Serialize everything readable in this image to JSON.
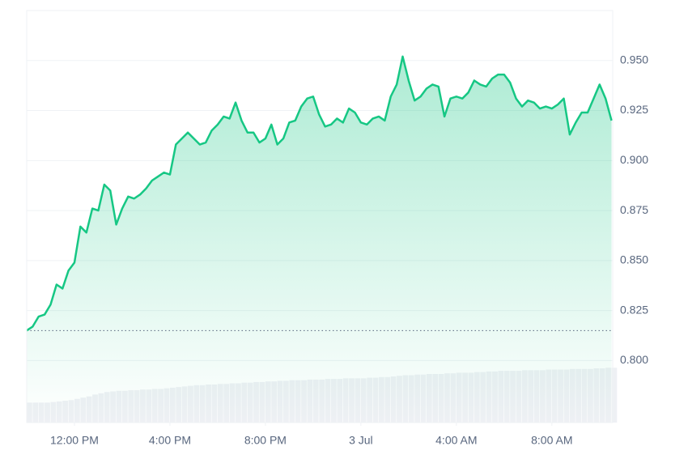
{
  "chart_data": {
    "type": "line",
    "color": "#16c784",
    "x": [
      -2,
      -1.75,
      -1.5,
      -1.25,
      -1,
      -0.75,
      -0.5,
      -0.25,
      0,
      0.25,
      0.5,
      0.75,
      1,
      1.25,
      1.5,
      1.75,
      2,
      2.25,
      2.5,
      2.75,
      3,
      3.25,
      3.5,
      3.75,
      4,
      4.25,
      4.5,
      4.75,
      5,
      5.25,
      5.5,
      5.75,
      6,
      6.25,
      6.5,
      6.75,
      7,
      7.25,
      7.5,
      7.75,
      8,
      8.25,
      8.5,
      8.75,
      9,
      9.25,
      9.5,
      9.75,
      10,
      10.25,
      10.5,
      10.75,
      11,
      11.25,
      11.5,
      11.75,
      12,
      12.25,
      12.5,
      12.75,
      13,
      13.25,
      13.5,
      13.75,
      14,
      14.25,
      14.5,
      14.75,
      15,
      15.25,
      15.5,
      15.75,
      16,
      16.25,
      16.5,
      16.75,
      17,
      17.25,
      17.5,
      17.75,
      18,
      18.25,
      18.5,
      18.75,
      19,
      19.25,
      19.5,
      19.75,
      20,
      20.25,
      20.5,
      20.75,
      21,
      21.25,
      21.5,
      21.75,
      22,
      22.25,
      22.5
    ],
    "values": [
      0.815,
      0.817,
      0.822,
      0.823,
      0.828,
      0.838,
      0.836,
      0.845,
      0.849,
      0.867,
      0.864,
      0.876,
      0.875,
      0.888,
      0.885,
      0.868,
      0.876,
      0.882,
      0.881,
      0.883,
      0.886,
      0.89,
      0.892,
      0.894,
      0.893,
      0.908,
      0.911,
      0.914,
      0.911,
      0.908,
      0.909,
      0.915,
      0.918,
      0.922,
      0.921,
      0.929,
      0.92,
      0.914,
      0.914,
      0.909,
      0.911,
      0.918,
      0.908,
      0.911,
      0.919,
      0.92,
      0.927,
      0.931,
      0.932,
      0.923,
      0.917,
      0.918,
      0.921,
      0.919,
      0.926,
      0.924,
      0.919,
      0.918,
      0.921,
      0.922,
      0.92,
      0.932,
      0.938,
      0.952,
      0.94,
      0.93,
      0.932,
      0.936,
      0.938,
      0.937,
      0.922,
      0.931,
      0.932,
      0.931,
      0.934,
      0.94,
      0.938,
      0.937,
      0.941,
      0.943,
      0.943,
      0.939,
      0.931,
      0.927,
      0.93,
      0.929,
      0.926,
      0.927,
      0.926,
      0.928,
      0.931,
      0.913,
      0.919,
      0.924,
      0.924,
      0.931,
      0.938,
      0.931,
      0.92
    ],
    "baseline": 0.815,
    "volume": {
      "color": "#eef0f4",
      "values": [
        32,
        32,
        32,
        32,
        33,
        34,
        35,
        36,
        38,
        40,
        42,
        45,
        47,
        49,
        50,
        51,
        51,
        52,
        52,
        53,
        53,
        54,
        54,
        55,
        56,
        57,
        58,
        59,
        60,
        60,
        61,
        61,
        62,
        62,
        63,
        63,
        64,
        64,
        65,
        65,
        66,
        66,
        67,
        67,
        68,
        68,
        68,
        69,
        69,
        69,
        70,
        70,
        70,
        71,
        71,
        71,
        71,
        72,
        72,
        73,
        73,
        74,
        75,
        76,
        76,
        77,
        77,
        78,
        78,
        78,
        79,
        79,
        80,
        80,
        80,
        81,
        81,
        82,
        82,
        83,
        83,
        83,
        83,
        84,
        84,
        84,
        84,
        85,
        85,
        85,
        85,
        86,
        86,
        86,
        86,
        87,
        87,
        88,
        88
      ]
    },
    "y2lim": [
      0,
      100
    ],
    "xlim": [
      -2,
      22.55
    ],
    "xticks": [
      {
        "value": 0,
        "label": "12:00 PM"
      },
      {
        "value": 4,
        "label": "4:00 PM"
      },
      {
        "value": 8,
        "label": "8:00 PM"
      },
      {
        "value": 12,
        "label": "3 Jul"
      },
      {
        "value": 16,
        "label": "4:00 AM"
      },
      {
        "value": 20,
        "label": "8:00 AM"
      }
    ],
    "ylim": [
      0.769,
      0.975
    ],
    "yticks": [
      {
        "value": 0.8,
        "label": "0.800"
      },
      {
        "value": 0.825,
        "label": "0.825"
      },
      {
        "value": 0.85,
        "label": "0.850"
      },
      {
        "value": 0.875,
        "label": "0.875"
      },
      {
        "value": 0.9,
        "label": "0.900"
      },
      {
        "value": 0.925,
        "label": "0.925"
      },
      {
        "value": 0.95,
        "label": "0.950"
      }
    ],
    "grid": true
  }
}
